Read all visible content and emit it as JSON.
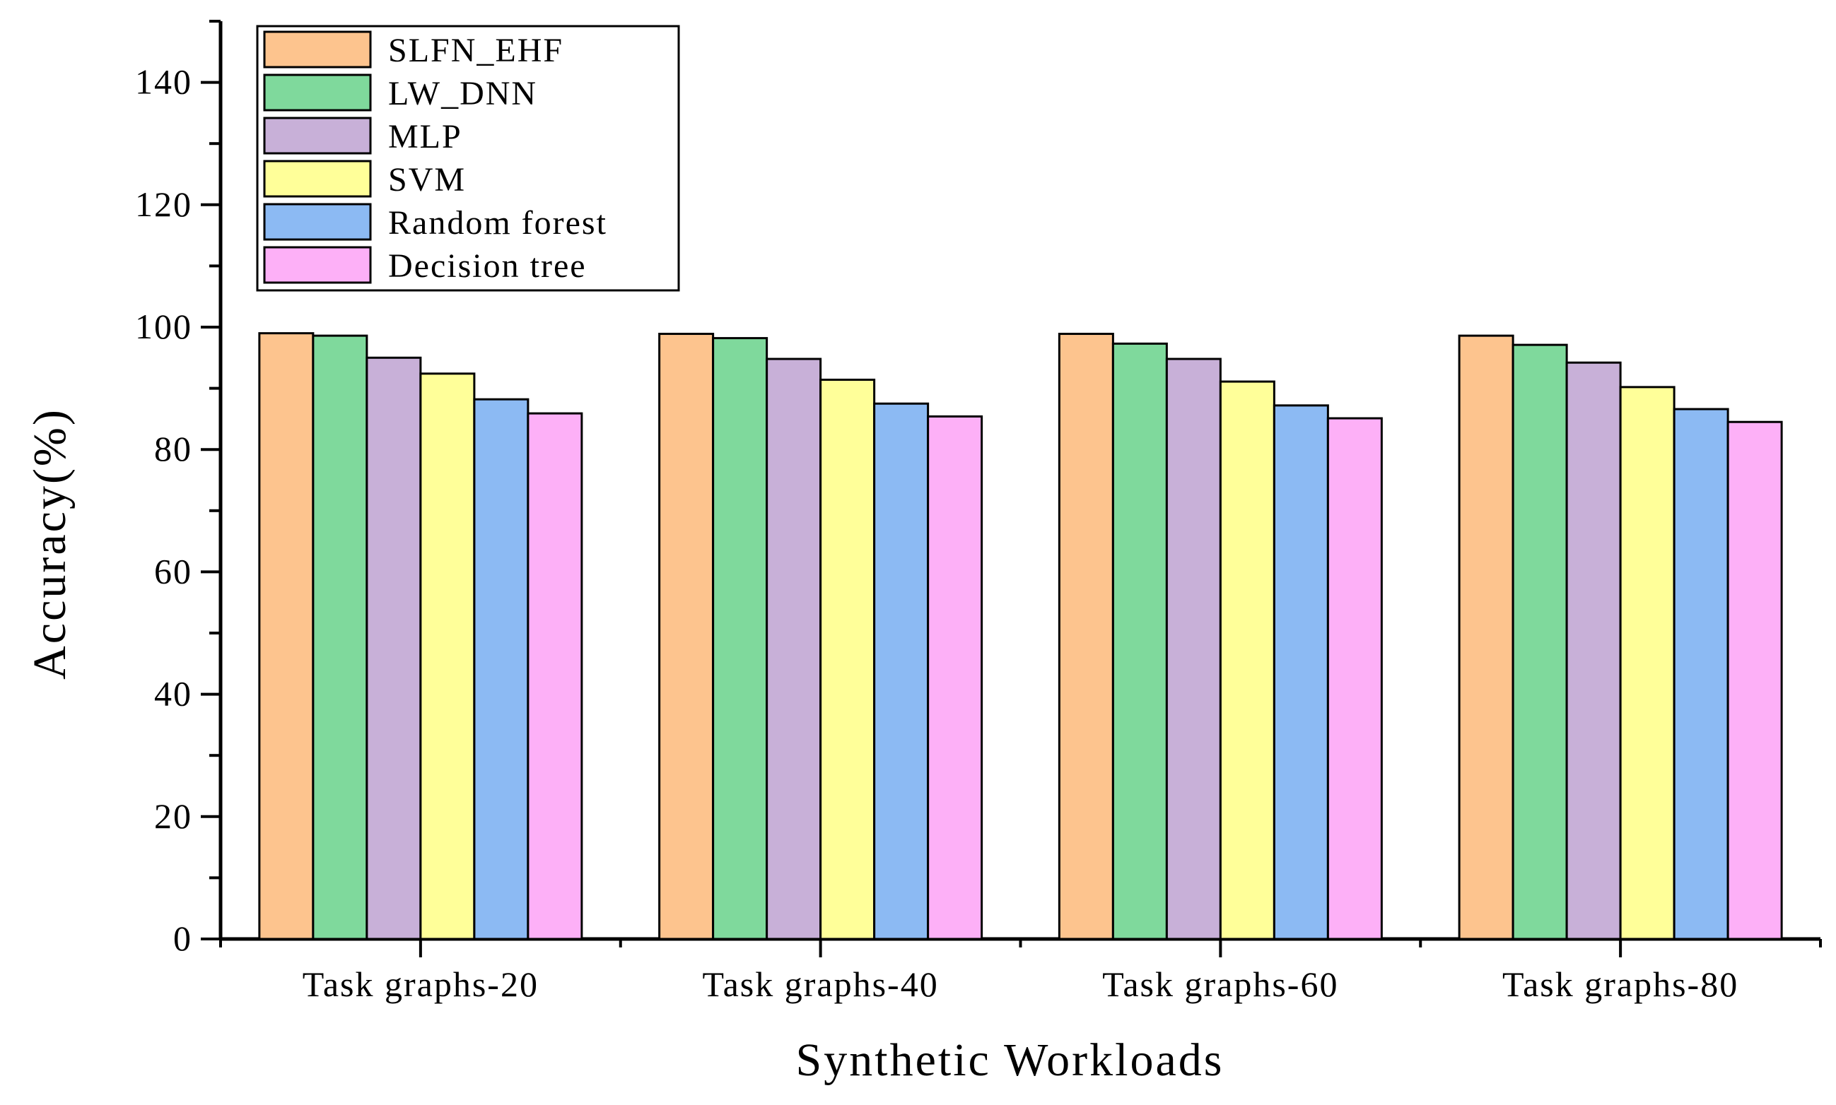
{
  "chart_data": {
    "type": "bar",
    "title": "",
    "xlabel": "Synthetic Workloads",
    "ylabel": "Accuracy(%)",
    "ylim": [
      0,
      150
    ],
    "yticks": [
      0,
      20,
      40,
      60,
      80,
      100,
      120,
      140
    ],
    "categories": [
      "Task graphs-20",
      "Task graphs-40",
      "Task graphs-60",
      "Task graphs-80"
    ],
    "series": [
      {
        "name": "SLFN_EHF",
        "color": "#FDC48E",
        "values": [
          99.0,
          98.9,
          98.9,
          98.6
        ]
      },
      {
        "name": "LW_DNN",
        "color": "#7FD99C",
        "values": [
          98.6,
          98.2,
          97.3,
          97.1
        ]
      },
      {
        "name": "MLP",
        "color": "#C8B0D8",
        "values": [
          95.0,
          94.8,
          94.8,
          94.2
        ]
      },
      {
        "name": "SVM",
        "color": "#FFFF99",
        "values": [
          92.4,
          91.4,
          91.1,
          90.2
        ]
      },
      {
        "name": "Random forest",
        "color": "#8CBAF3",
        "values": [
          88.2,
          87.5,
          87.2,
          86.6
        ]
      },
      {
        "name": "Decision tree",
        "color": "#FDB0F7",
        "values": [
          85.9,
          85.4,
          85.1,
          84.5
        ]
      }
    ],
    "legend_position": "top-left",
    "grid": false
  }
}
